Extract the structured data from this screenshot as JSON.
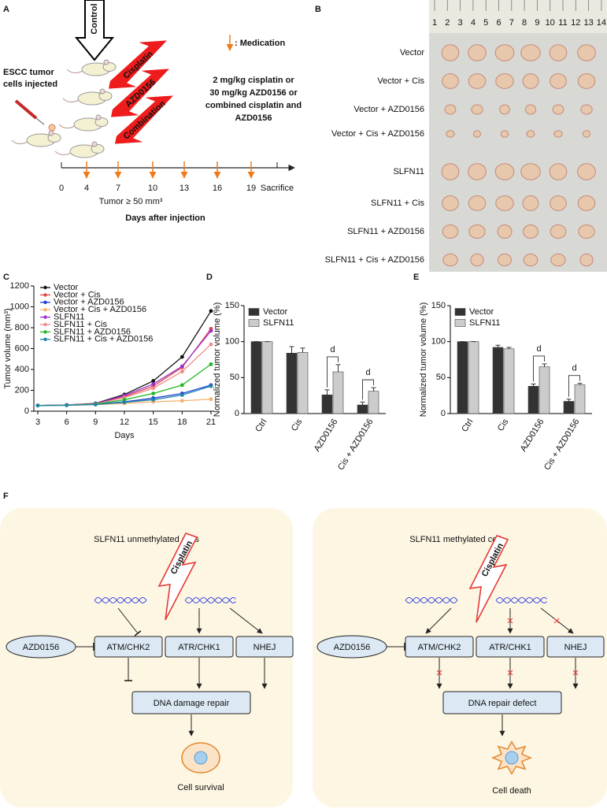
{
  "panel_a": {
    "label": "A",
    "control": "Control",
    "injected": [
      "ESCC tumor",
      "cells injected"
    ],
    "treatments": [
      "Cisplatin",
      "AZD0156",
      "Combination"
    ],
    "legend": ": Medication",
    "dosing": [
      "2 mg/kg cisplatin or",
      "30 mg/kg AZD0156 or",
      "combined cisplatin and",
      "AZD0156"
    ],
    "timeline_days": [
      0,
      4,
      7,
      10,
      13,
      16,
      19
    ],
    "end_label": "Sacrifice",
    "threshold": "Tumor ≥ 50 mm³",
    "axis_label": "Days after injection"
  },
  "panel_b": {
    "label": "B",
    "ruler": [
      1,
      2,
      3,
      4,
      5,
      6,
      7,
      8,
      9,
      10,
      11,
      12,
      13,
      14
    ],
    "groups": [
      "Vector",
      "Vector + Cis",
      "Vector + AZD0156",
      "Vector + Cis + AZD0156",
      "SLFN11",
      "SLFN11 + Cis",
      "SLFN11 + AZD0156",
      "SLFN11 + Cis + AZD0156"
    ]
  },
  "chart_data": [
    {
      "panel": "C",
      "type": "line",
      "x": [
        3,
        6,
        9,
        12,
        15,
        18,
        21
      ],
      "xlim": [
        3,
        21
      ],
      "xticks": [
        3,
        6,
        9,
        12,
        15,
        18,
        21
      ],
      "ylim": [
        0,
        1200
      ],
      "yticks": [
        0,
        200,
        400,
        600,
        800,
        1000,
        1200
      ],
      "xlabel": "Days",
      "ylabel": "Tumor volume (mm³)",
      "series": [
        {
          "name": "Vector",
          "color": "#111111",
          "values": [
            55,
            60,
            75,
            160,
            290,
            520,
            960
          ]
        },
        {
          "name": "Vector + Cis",
          "color": "#e04848",
          "values": [
            55,
            60,
            70,
            140,
            240,
            420,
            790
          ]
        },
        {
          "name": "Vector + AZD0156",
          "color": "#1f3fd8",
          "values": [
            55,
            58,
            65,
            90,
            125,
            170,
            250
          ]
        },
        {
          "name": "Vector + Cis + AZD0156",
          "color": "#f2b36c",
          "values": [
            55,
            57,
            62,
            75,
            90,
            100,
            115
          ]
        },
        {
          "name": "SLFN11",
          "color": "#9b30d0",
          "values": [
            55,
            60,
            72,
            150,
            260,
            430,
            770
          ]
        },
        {
          "name": "SLFN11 + Cis",
          "color": "#f28a8a",
          "values": [
            55,
            60,
            70,
            130,
            220,
            380,
            640
          ]
        },
        {
          "name": "SLFN11 + AZD0156",
          "color": "#22b822",
          "values": [
            55,
            58,
            68,
            110,
            170,
            250,
            450
          ]
        },
        {
          "name": "SLFN11 + Cis + AZD0156",
          "color": "#1d86a8",
          "values": [
            55,
            57,
            64,
            85,
            110,
            155,
            240
          ]
        }
      ]
    },
    {
      "panel": "D",
      "type": "bar",
      "categories": [
        "Ctrl",
        "Cis",
        "AZD0156",
        "Cis + AZD0156"
      ],
      "ylim": [
        0,
        150
      ],
      "yticks": [
        0,
        50,
        100,
        150
      ],
      "ylabel": "Normalized tumor volume (%)",
      "series": [
        {
          "name": "Vector",
          "color": "#333333",
          "values": [
            100,
            84,
            26,
            12
          ],
          "errors": [
            0,
            9,
            7,
            4
          ]
        },
        {
          "name": "SLFN11",
          "color": "#cccccc",
          "values": [
            100,
            85,
            58,
            31
          ],
          "errors": [
            0,
            6,
            10,
            5
          ]
        }
      ],
      "annotations": [
        "d",
        "d"
      ]
    },
    {
      "panel": "E",
      "type": "bar",
      "categories": [
        "Ctrl",
        "Cis",
        "AZD0156",
        "Cis + AZD0156"
      ],
      "ylim": [
        0,
        150
      ],
      "yticks": [
        0,
        50,
        100,
        150
      ],
      "ylabel": "Normalized tumor volume (%)",
      "series": [
        {
          "name": "Vector",
          "color": "#333333",
          "values": [
            100,
            92,
            38,
            17
          ],
          "errors": [
            0,
            3,
            3,
            3
          ]
        },
        {
          "name": "SLFN11",
          "color": "#cccccc",
          "values": [
            100,
            90,
            65,
            40
          ],
          "errors": [
            0,
            2,
            4,
            2
          ]
        }
      ],
      "annotations": [
        "d",
        "d"
      ]
    }
  ],
  "panel_f": {
    "label": "F",
    "left": {
      "title": "SLFN11 unmethylated cells",
      "drug": "Cisplatin",
      "inhibitor": "AZD0156",
      "pathways": [
        "ATM/CHK2",
        "ATR/CHK1",
        "NHEJ"
      ],
      "outcome": "DNA damage repair",
      "fate": "Cell survival"
    },
    "right": {
      "title": "SLFN11 methylated cells",
      "drug": "Cisplatin",
      "inhibitor": "AZD0156",
      "pathways": [
        "ATM/CHK2",
        "ATR/CHK1",
        "NHEJ"
      ],
      "outcome": "DNA  repair defect",
      "fate": "Cell death"
    }
  }
}
